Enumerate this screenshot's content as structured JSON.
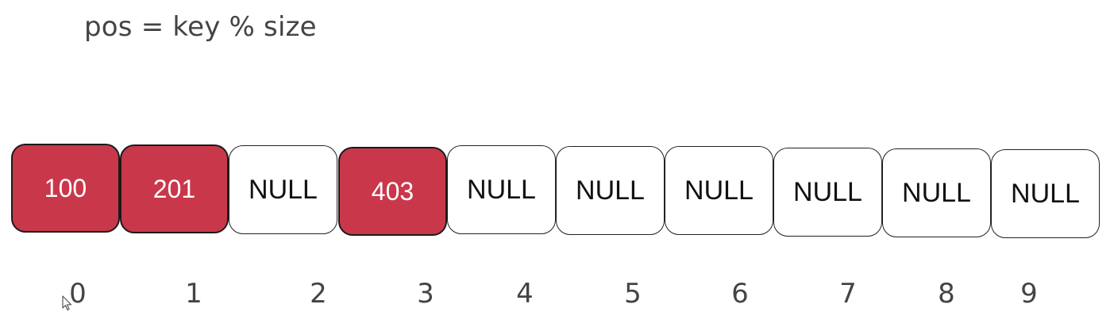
{
  "formula": "pos = key % size",
  "slots": [
    {
      "label": "100",
      "filled": true
    },
    {
      "label": "201",
      "filled": true
    },
    {
      "label": "NULL",
      "filled": false
    },
    {
      "label": "403",
      "filled": true
    },
    {
      "label": "NULL",
      "filled": false
    },
    {
      "label": "NULL",
      "filled": false
    },
    {
      "label": "NULL",
      "filled": false
    },
    {
      "label": "NULL",
      "filled": false
    },
    {
      "label": "NULL",
      "filled": false
    },
    {
      "label": "NULL",
      "filled": false
    }
  ],
  "indices": [
    "0",
    "1",
    "2",
    "3",
    "4",
    "5",
    "6",
    "7",
    "8",
    "9"
  ],
  "colors": {
    "filled": "#c9384a",
    "empty": "#ffffff"
  }
}
